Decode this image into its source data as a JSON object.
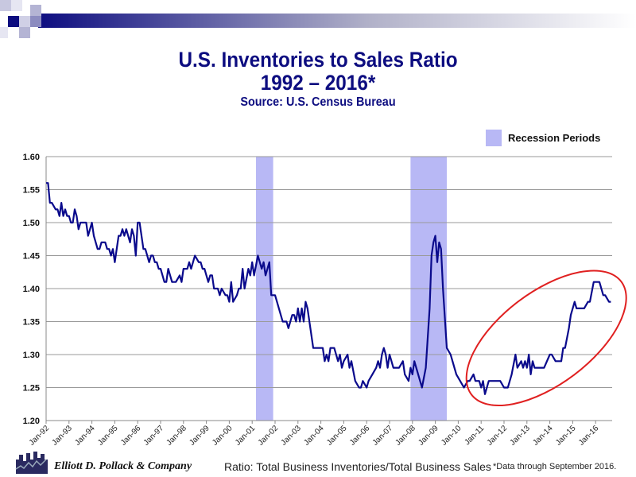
{
  "header": {
    "title": "U.S. Inventories to Sales Ratio",
    "subtitle": "1992 – 2016*",
    "source": "Source: U.S. Census Bureau"
  },
  "legend": {
    "recession_label": "Recession Periods",
    "recession_color": "#b8b8f5"
  },
  "footer": {
    "company": "Elliott D. Pollack & Company",
    "ratio_note": "Ratio: Total Business Inventories/Total  Business Sales",
    "data_note": "*Data through September 2016."
  },
  "chart_data": {
    "type": "line",
    "title": "U.S. Inventories to Sales Ratio 1992 – 2016*",
    "ylim": [
      1.2,
      1.6
    ],
    "yticks": [
      "1.20",
      "1.25",
      "1.30",
      "1.35",
      "1.40",
      "1.45",
      "1.50",
      "1.55",
      "1.60"
    ],
    "xticks": [
      "Jan-92",
      "Jan-93",
      "Jan-94",
      "Jan-95",
      "Jan-96",
      "Jan-97",
      "Jan-98",
      "Jan-99",
      "Jan-00",
      "Jan-01",
      "Jan-02",
      "Jan-03",
      "Jan-04",
      "Jan-05",
      "Jan-06",
      "Jan-07",
      "Jan-08",
      "Jan-09",
      "Jan-10",
      "Jan-11",
      "Jan-12",
      "Jan-13",
      "Jan-14",
      "Jan-15",
      "Jan-16"
    ],
    "grid": "horizontal",
    "line_color": "#0a0a8c",
    "recessions": [
      [
        "2001-03",
        "2001-11"
      ],
      [
        "2007-12",
        "2009-06"
      ]
    ],
    "highlight_ellipse": {
      "color": "#e02020",
      "span": [
        "2010-10",
        "2016-09"
      ]
    },
    "points": [
      [
        "1992-01",
        1.56
      ],
      [
        "1992-02",
        1.56
      ],
      [
        "1992-03",
        1.53
      ],
      [
        "1992-04",
        1.53
      ],
      [
        "1992-06",
        1.52
      ],
      [
        "1992-07",
        1.52
      ],
      [
        "1992-08",
        1.51
      ],
      [
        "1992-09",
        1.53
      ],
      [
        "1992-10",
        1.51
      ],
      [
        "1992-11",
        1.52
      ],
      [
        "1992-12",
        1.51
      ],
      [
        "1993-01",
        1.51
      ],
      [
        "1993-02",
        1.5
      ],
      [
        "1993-03",
        1.5
      ],
      [
        "1993-04",
        1.52
      ],
      [
        "1993-05",
        1.51
      ],
      [
        "1993-06",
        1.49
      ],
      [
        "1993-07",
        1.5
      ],
      [
        "1993-10",
        1.5
      ],
      [
        "1993-11",
        1.48
      ],
      [
        "1993-12",
        1.49
      ],
      [
        "1994-01",
        1.5
      ],
      [
        "1994-02",
        1.48
      ],
      [
        "1994-04",
        1.46
      ],
      [
        "1994-05",
        1.46
      ],
      [
        "1994-06",
        1.47
      ],
      [
        "1994-08",
        1.47
      ],
      [
        "1994-09",
        1.46
      ],
      [
        "1994-10",
        1.46
      ],
      [
        "1994-11",
        1.45
      ],
      [
        "1994-12",
        1.46
      ],
      [
        "1995-01",
        1.44
      ],
      [
        "1995-02",
        1.46
      ],
      [
        "1995-03",
        1.48
      ],
      [
        "1995-04",
        1.48
      ],
      [
        "1995-05",
        1.49
      ],
      [
        "1995-06",
        1.48
      ],
      [
        "1995-07",
        1.49
      ],
      [
        "1995-08",
        1.48
      ],
      [
        "1995-09",
        1.47
      ],
      [
        "1995-10",
        1.49
      ],
      [
        "1995-11",
        1.48
      ],
      [
        "1995-12",
        1.45
      ],
      [
        "1996-01",
        1.5
      ],
      [
        "1996-02",
        1.5
      ],
      [
        "1996-04",
        1.46
      ],
      [
        "1996-05",
        1.46
      ],
      [
        "1996-07",
        1.44
      ],
      [
        "1996-08",
        1.45
      ],
      [
        "1996-09",
        1.45
      ],
      [
        "1996-10",
        1.44
      ],
      [
        "1996-11",
        1.44
      ],
      [
        "1996-12",
        1.43
      ],
      [
        "1997-01",
        1.43
      ],
      [
        "1997-03",
        1.41
      ],
      [
        "1997-04",
        1.41
      ],
      [
        "1997-05",
        1.43
      ],
      [
        "1997-06",
        1.42
      ],
      [
        "1997-07",
        1.41
      ],
      [
        "1997-09",
        1.41
      ],
      [
        "1997-11",
        1.42
      ],
      [
        "1997-12",
        1.41
      ],
      [
        "1998-01",
        1.43
      ],
      [
        "1998-03",
        1.43
      ],
      [
        "1998-04",
        1.44
      ],
      [
        "1998-05",
        1.43
      ],
      [
        "1998-07",
        1.45
      ],
      [
        "1998-09",
        1.44
      ],
      [
        "1998-10",
        1.44
      ],
      [
        "1998-11",
        1.43
      ],
      [
        "1998-12",
        1.43
      ],
      [
        "1999-02",
        1.41
      ],
      [
        "1999-03",
        1.42
      ],
      [
        "1999-04",
        1.42
      ],
      [
        "1999-05",
        1.4
      ],
      [
        "1999-07",
        1.4
      ],
      [
        "1999-08",
        1.39
      ],
      [
        "1999-09",
        1.4
      ],
      [
        "1999-11",
        1.39
      ],
      [
        "1999-12",
        1.39
      ],
      [
        "2000-01",
        1.38
      ],
      [
        "2000-02",
        1.41
      ],
      [
        "2000-03",
        1.38
      ],
      [
        "2000-05",
        1.39
      ],
      [
        "2000-06",
        1.4
      ],
      [
        "2000-07",
        1.4
      ],
      [
        "2000-08",
        1.43
      ],
      [
        "2000-09",
        1.4
      ],
      [
        "2000-11",
        1.43
      ],
      [
        "2000-12",
        1.42
      ],
      [
        "2001-01",
        1.44
      ],
      [
        "2001-02",
        1.42
      ],
      [
        "2001-04",
        1.45
      ],
      [
        "2001-06",
        1.43
      ],
      [
        "2001-07",
        1.44
      ],
      [
        "2001-08",
        1.42
      ],
      [
        "2001-10",
        1.44
      ],
      [
        "2001-11",
        1.39
      ],
      [
        "2002-01",
        1.39
      ],
      [
        "2002-03",
        1.37
      ],
      [
        "2002-05",
        1.35
      ],
      [
        "2002-07",
        1.35
      ],
      [
        "2002-08",
        1.34
      ],
      [
        "2002-10",
        1.36
      ],
      [
        "2002-11",
        1.36
      ],
      [
        "2002-12",
        1.35
      ],
      [
        "2003-01",
        1.37
      ],
      [
        "2003-02",
        1.35
      ],
      [
        "2003-03",
        1.37
      ],
      [
        "2003-04",
        1.35
      ],
      [
        "2003-05",
        1.38
      ],
      [
        "2003-06",
        1.37
      ],
      [
        "2003-08",
        1.33
      ],
      [
        "2003-09",
        1.31
      ],
      [
        "2003-11",
        1.31
      ],
      [
        "2004-02",
        1.31
      ],
      [
        "2004-03",
        1.29
      ],
      [
        "2004-04",
        1.3
      ],
      [
        "2004-05",
        1.29
      ],
      [
        "2004-06",
        1.31
      ],
      [
        "2004-08",
        1.31
      ],
      [
        "2004-09",
        1.3
      ],
      [
        "2004-10",
        1.29
      ],
      [
        "2004-11",
        1.3
      ],
      [
        "2004-12",
        1.28
      ],
      [
        "2005-01",
        1.29
      ],
      [
        "2005-03",
        1.3
      ],
      [
        "2005-04",
        1.28
      ],
      [
        "2005-05",
        1.29
      ],
      [
        "2005-07",
        1.26
      ],
      [
        "2005-09",
        1.25
      ],
      [
        "2005-10",
        1.25
      ],
      [
        "2005-11",
        1.26
      ],
      [
        "2006-01",
        1.25
      ],
      [
        "2006-02",
        1.26
      ],
      [
        "2006-04",
        1.27
      ],
      [
        "2006-06",
        1.28
      ],
      [
        "2006-07",
        1.29
      ],
      [
        "2006-08",
        1.28
      ],
      [
        "2006-09",
        1.3
      ],
      [
        "2006-10",
        1.31
      ],
      [
        "2006-11",
        1.3
      ],
      [
        "2006-12",
        1.28
      ],
      [
        "2007-01",
        1.3
      ],
      [
        "2007-03",
        1.28
      ],
      [
        "2007-06",
        1.28
      ],
      [
        "2007-08",
        1.29
      ],
      [
        "2007-09",
        1.27
      ],
      [
        "2007-11",
        1.26
      ],
      [
        "2007-12",
        1.28
      ],
      [
        "2008-01",
        1.27
      ],
      [
        "2008-02",
        1.29
      ],
      [
        "2008-04",
        1.27
      ],
      [
        "2008-06",
        1.25
      ],
      [
        "2008-08",
        1.28
      ],
      [
        "2008-10",
        1.37
      ],
      [
        "2008-11",
        1.45
      ],
      [
        "2008-12",
        1.47
      ],
      [
        "2009-01",
        1.48
      ],
      [
        "2009-02",
        1.44
      ],
      [
        "2009-03",
        1.47
      ],
      [
        "2009-04",
        1.46
      ],
      [
        "2009-05",
        1.4
      ],
      [
        "2009-07",
        1.31
      ],
      [
        "2009-09",
        1.3
      ],
      [
        "2009-10",
        1.29
      ],
      [
        "2009-12",
        1.27
      ],
      [
        "2010-02",
        1.26
      ],
      [
        "2010-04",
        1.25
      ],
      [
        "2010-06",
        1.26
      ],
      [
        "2010-07",
        1.26
      ],
      [
        "2010-09",
        1.27
      ],
      [
        "2010-10",
        1.26
      ],
      [
        "2010-12",
        1.26
      ],
      [
        "2011-01",
        1.25
      ],
      [
        "2011-02",
        1.26
      ],
      [
        "2011-03",
        1.24
      ],
      [
        "2011-04",
        1.25
      ],
      [
        "2011-05",
        1.26
      ],
      [
        "2011-06",
        1.26
      ],
      [
        "2011-07",
        1.26
      ],
      [
        "2011-11",
        1.26
      ],
      [
        "2012-01",
        1.25
      ],
      [
        "2012-03",
        1.25
      ],
      [
        "2012-05",
        1.27
      ],
      [
        "2012-07",
        1.3
      ],
      [
        "2012-08",
        1.28
      ],
      [
        "2012-10",
        1.29
      ],
      [
        "2012-11",
        1.28
      ],
      [
        "2012-12",
        1.29
      ],
      [
        "2013-01",
        1.28
      ],
      [
        "2013-02",
        1.3
      ],
      [
        "2013-03",
        1.27
      ],
      [
        "2013-04",
        1.29
      ],
      [
        "2013-05",
        1.28
      ],
      [
        "2013-07",
        1.28
      ],
      [
        "2013-10",
        1.28
      ],
      [
        "2014-01",
        1.3
      ],
      [
        "2014-02",
        1.3
      ],
      [
        "2014-04",
        1.29
      ],
      [
        "2014-07",
        1.29
      ],
      [
        "2014-08",
        1.31
      ],
      [
        "2014-09",
        1.31
      ],
      [
        "2014-11",
        1.34
      ],
      [
        "2014-12",
        1.36
      ],
      [
        "2015-02",
        1.38
      ],
      [
        "2015-03",
        1.37
      ],
      [
        "2015-07",
        1.37
      ],
      [
        "2015-09",
        1.38
      ],
      [
        "2015-10",
        1.38
      ],
      [
        "2015-12",
        1.41
      ],
      [
        "2016-03",
        1.41
      ],
      [
        "2016-04",
        1.4
      ],
      [
        "2016-05",
        1.39
      ],
      [
        "2016-06",
        1.39
      ],
      [
        "2016-08",
        1.38
      ],
      [
        "2016-09",
        1.38
      ]
    ]
  }
}
